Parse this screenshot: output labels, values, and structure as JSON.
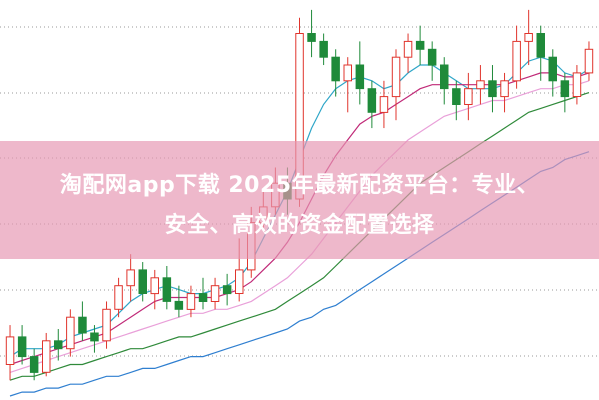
{
  "banner": {
    "line1": "淘配网app下载 2025年最新配资平台：专业、",
    "line2": "安全、高效的资金配置选择"
  },
  "chart_data": {
    "type": "candlestick",
    "up_color": "#e0342c",
    "down_color": "#1f8a3a",
    "grid_style": "dotted-horizontal",
    "ylim": [
      0,
      100
    ],
    "candles": [
      [
        8,
        15,
        4,
        18
      ],
      [
        15,
        10,
        8,
        18
      ],
      [
        10,
        6,
        4,
        12
      ],
      [
        6,
        14,
        5,
        16
      ],
      [
        14,
        12,
        9,
        17
      ],
      [
        12,
        20,
        10,
        22
      ],
      [
        20,
        16,
        14,
        24
      ],
      [
        16,
        14,
        11,
        18
      ],
      [
        14,
        22,
        12,
        24
      ],
      [
        22,
        28,
        20,
        30
      ],
      [
        28,
        32,
        24,
        36
      ],
      [
        32,
        26,
        24,
        34
      ],
      [
        26,
        30,
        22,
        32
      ],
      [
        30,
        24,
        22,
        33
      ],
      [
        24,
        22,
        20,
        28
      ],
      [
        22,
        26,
        20,
        28
      ],
      [
        26,
        24,
        22,
        30
      ],
      [
        24,
        28,
        22,
        30
      ],
      [
        28,
        26,
        23,
        31
      ],
      [
        26,
        32,
        24,
        40
      ],
      [
        32,
        44,
        30,
        48
      ],
      [
        44,
        48,
        42,
        52
      ],
      [
        48,
        54,
        46,
        58
      ],
      [
        54,
        50,
        46,
        58
      ],
      [
        50,
        92,
        48,
        96
      ],
      [
        92,
        90,
        86,
        98
      ],
      [
        90,
        86,
        84,
        92
      ],
      [
        86,
        80,
        76,
        88
      ],
      [
        80,
        84,
        72,
        86
      ],
      [
        84,
        78,
        74,
        90
      ],
      [
        78,
        72,
        68,
        80
      ],
      [
        72,
        76,
        68,
        80
      ],
      [
        76,
        86,
        70,
        88
      ],
      [
        86,
        90,
        82,
        92
      ],
      [
        90,
        88,
        84,
        94
      ],
      [
        88,
        84,
        80,
        90
      ],
      [
        84,
        78,
        74,
        86
      ],
      [
        78,
        74,
        70,
        80
      ],
      [
        74,
        78,
        70,
        82
      ],
      [
        78,
        80,
        74,
        84
      ],
      [
        80,
        76,
        72,
        84
      ],
      [
        76,
        80,
        72,
        82
      ],
      [
        80,
        90,
        78,
        94
      ],
      [
        90,
        92,
        84,
        98
      ],
      [
        92,
        86,
        80,
        94
      ],
      [
        86,
        80,
        76,
        88
      ],
      [
        80,
        76,
        72,
        82
      ],
      [
        76,
        82,
        74,
        84
      ],
      [
        82,
        88,
        80,
        90
      ]
    ],
    "moving_averages": [
      {
        "color": "#2fa6c8",
        "values": [
          10,
          12,
          12,
          12,
          13,
          15,
          16,
          17,
          18,
          21,
          24,
          26,
          27,
          28,
          27,
          26,
          26,
          27,
          28,
          30,
          34,
          40,
          46,
          52,
          60,
          68,
          74,
          78,
          80,
          81,
          80,
          78,
          79,
          82,
          84,
          84,
          82,
          80,
          78,
          78,
          78,
          79,
          82,
          85,
          86,
          85,
          82,
          81,
          83
        ]
      },
      {
        "color": "#c02a78",
        "values": [
          8,
          9,
          10,
          11,
          12,
          13,
          14,
          15,
          16,
          18,
          20,
          22,
          24,
          25,
          25,
          25,
          25,
          25,
          26,
          27,
          29,
          32,
          35,
          39,
          44,
          50,
          56,
          61,
          65,
          69,
          71,
          72,
          74,
          76,
          78,
          79,
          79,
          79,
          79,
          79,
          79,
          79,
          80,
          81,
          82,
          82,
          81,
          81,
          82
        ]
      },
      {
        "color": "#e9a0d9",
        "values": [
          6,
          7,
          8,
          9,
          10,
          11,
          12,
          13,
          14,
          15,
          16,
          17,
          18,
          19,
          20,
          21,
          21,
          22,
          22,
          23,
          24,
          26,
          28,
          30,
          33,
          36,
          40,
          44,
          48,
          52,
          56,
          59,
          62,
          65,
          67,
          69,
          71,
          72,
          73,
          74,
          75,
          75,
          76,
          77,
          78,
          78,
          79,
          79,
          80
        ]
      },
      {
        "color": "#2f8a3a",
        "values": [
          4,
          5,
          5,
          6,
          7,
          8,
          8,
          9,
          10,
          11,
          12,
          12,
          13,
          14,
          15,
          15,
          16,
          17,
          18,
          19,
          20,
          21,
          22,
          24,
          26,
          28,
          30,
          33,
          36,
          39,
          42,
          45,
          48,
          51,
          54,
          56,
          58,
          60,
          62,
          64,
          66,
          68,
          70,
          72,
          73,
          74,
          75,
          76,
          77
        ]
      },
      {
        "color": "#2f7fd0",
        "values": [
          0,
          1,
          1,
          2,
          2,
          3,
          3,
          4,
          5,
          5,
          6,
          7,
          7,
          8,
          9,
          10,
          10,
          11,
          12,
          13,
          14,
          15,
          16,
          17,
          19,
          20,
          22,
          23,
          25,
          27,
          29,
          31,
          33,
          35,
          37,
          39,
          41,
          43,
          45,
          47,
          49,
          51,
          53,
          55,
          57,
          58,
          60,
          61,
          62
        ]
      }
    ]
  }
}
